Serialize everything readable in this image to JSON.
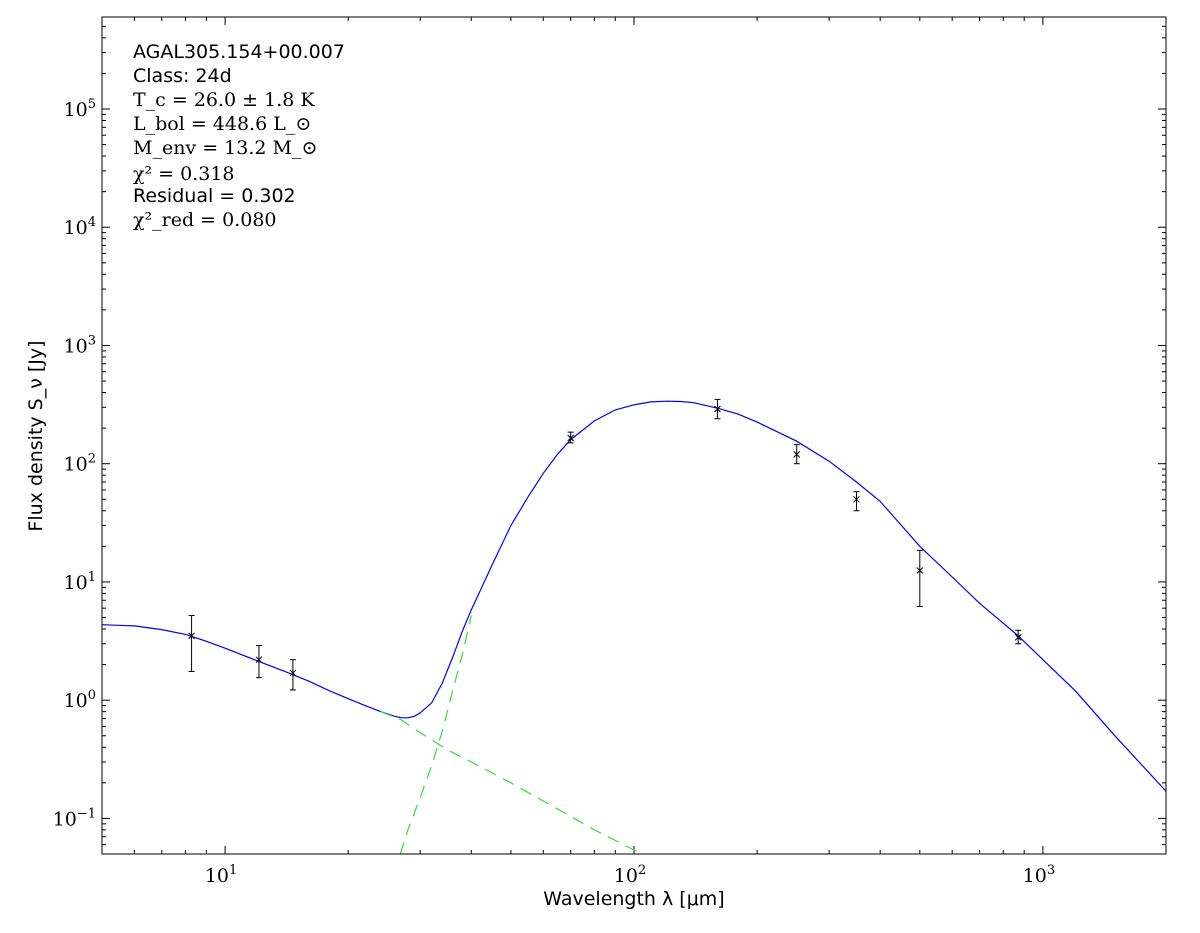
{
  "chart_data": {
    "type": "scatter",
    "scale": {
      "x": "log",
      "y": "log"
    },
    "xlim": [
      5,
      2000
    ],
    "ylim": [
      0.05,
      600000
    ],
    "xlabel": "Wavelength λ [μm]",
    "ylabel": "Flux density S_ν [Jy]",
    "xticks": [
      10,
      100,
      1000
    ],
    "xtick_labels": [
      {
        "base": "10",
        "exp": "1"
      },
      {
        "base": "10",
        "exp": "2"
      },
      {
        "base": "10",
        "exp": "3"
      }
    ],
    "yticks": [
      0.1,
      1,
      10,
      100,
      1000,
      10000,
      100000
    ],
    "ytick_labels": [
      {
        "base": "10",
        "exp": "−1"
      },
      {
        "base": "10",
        "exp": "0"
      },
      {
        "base": "10",
        "exp": "1"
      },
      {
        "base": "10",
        "exp": "2"
      },
      {
        "base": "10",
        "exp": "3"
      },
      {
        "base": "10",
        "exp": "4"
      },
      {
        "base": "10",
        "exp": "5"
      }
    ],
    "annotations": {
      "source": "AGAL305.154+00.007",
      "class": "Class: 24d",
      "tc": "T_c = 26.0 ± 1.8 K",
      "lbol": "L_bol = 448.6 L_⊙",
      "menv": "M_env = 13.2 M_⊙",
      "chi2": "χ² = 0.318",
      "residual": "Residual = 0.302",
      "chi2red": "χ²_red = 0.080"
    },
    "points": [
      {
        "x": 8.28,
        "y": 3.5,
        "ylo": 1.75,
        "yhi": 5.2
      },
      {
        "x": 12.1,
        "y": 2.2,
        "ylo": 1.55,
        "yhi": 2.9
      },
      {
        "x": 14.65,
        "y": 1.7,
        "ylo": 1.22,
        "yhi": 2.2
      },
      {
        "x": 70,
        "y": 165,
        "ylo": 150,
        "yhi": 185
      },
      {
        "x": 160,
        "y": 290,
        "ylo": 240,
        "yhi": 350
      },
      {
        "x": 250,
        "y": 120,
        "ylo": 100,
        "yhi": 145
      },
      {
        "x": 350,
        "y": 50,
        "ylo": 40,
        "yhi": 58
      },
      {
        "x": 500,
        "y": 12.5,
        "ylo": 6.2,
        "yhi": 18.5
      },
      {
        "x": 870,
        "y": 3.4,
        "ylo": 3.0,
        "yhi": 3.9
      }
    ],
    "series": [
      {
        "kind": "total-fit",
        "color": "#0000ff",
        "dash": "solid",
        "points": [
          [
            5,
            4.35
          ],
          [
            6,
            4.25
          ],
          [
            7,
            3.95
          ],
          [
            8,
            3.6
          ],
          [
            9,
            3.15
          ],
          [
            10,
            2.75
          ],
          [
            12,
            2.15
          ],
          [
            14,
            1.75
          ],
          [
            16,
            1.45
          ],
          [
            18,
            1.2
          ],
          [
            20,
            1.03
          ],
          [
            22,
            0.9
          ],
          [
            24,
            0.8
          ],
          [
            26,
            0.73
          ],
          [
            27,
            0.71
          ],
          [
            28,
            0.71
          ],
          [
            29,
            0.73
          ],
          [
            30,
            0.78
          ],
          [
            32,
            0.95
          ],
          [
            34,
            1.4
          ],
          [
            36,
            2.3
          ],
          [
            38,
            3.8
          ],
          [
            40,
            5.8
          ],
          [
            45,
            14
          ],
          [
            50,
            30
          ],
          [
            55,
            52
          ],
          [
            60,
            83
          ],
          [
            65,
            120
          ],
          [
            70,
            160
          ],
          [
            80,
            230
          ],
          [
            90,
            285
          ],
          [
            100,
            315
          ],
          [
            110,
            333
          ],
          [
            120,
            338
          ],
          [
            130,
            336
          ],
          [
            140,
            328
          ],
          [
            160,
            295
          ],
          [
            180,
            262
          ],
          [
            200,
            225
          ],
          [
            250,
            155
          ],
          [
            300,
            105
          ],
          [
            350,
            70
          ],
          [
            400,
            48
          ],
          [
            500,
            20
          ],
          [
            600,
            11
          ],
          [
            700,
            6.6
          ],
          [
            870,
            3.5
          ],
          [
            1000,
            2.2
          ],
          [
            1200,
            1.2
          ],
          [
            1500,
            0.5
          ],
          [
            2000,
            0.17
          ]
        ]
      },
      {
        "kind": "warm-component",
        "color": "#33dd33",
        "dash": "dashed",
        "points": [
          [
            24,
            0.8
          ],
          [
            27,
            0.68
          ],
          [
            30,
            0.53
          ],
          [
            35,
            0.38
          ],
          [
            40,
            0.3
          ],
          [
            50,
            0.2
          ],
          [
            60,
            0.14
          ],
          [
            70,
            0.104
          ],
          [
            80,
            0.08
          ],
          [
            90,
            0.065
          ],
          [
            100,
            0.054
          ],
          [
            105,
            0.05
          ]
        ]
      },
      {
        "kind": "cold-component",
        "color": "#33dd33",
        "dash": "dashed",
        "points": [
          [
            26.8,
            0.05
          ],
          [
            28,
            0.08
          ],
          [
            30,
            0.15
          ],
          [
            32,
            0.28
          ],
          [
            34,
            0.55
          ],
          [
            36,
            1.2
          ],
          [
            38,
            2.4
          ],
          [
            40,
            5.2
          ]
        ]
      }
    ]
  }
}
